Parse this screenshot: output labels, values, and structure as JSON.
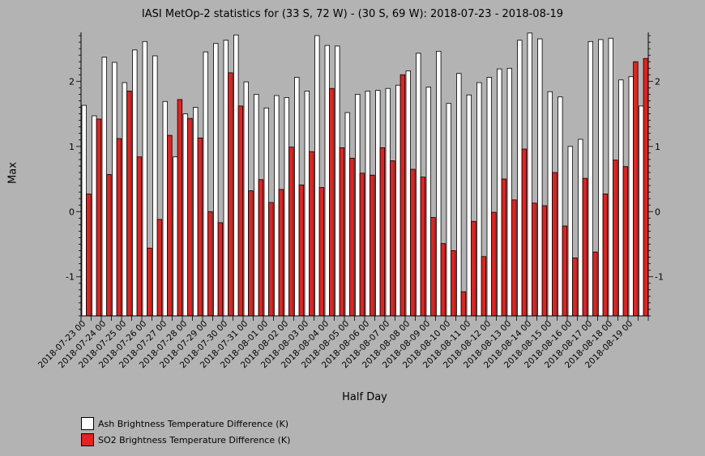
{
  "chart_data": {
    "type": "bar",
    "title": "IASI MetOp-2 statistics for (33 S, 72 W) - (30 S, 69 W): 2018-07-23 - 2018-08-19",
    "xlabel": "Half Day",
    "ylabel": "Max",
    "ylim": [
      -1.6,
      2.75
    ],
    "yticks": [
      -1,
      0,
      1,
      2
    ],
    "grid": false,
    "legend_position": "bottom-left",
    "colors": {
      "ash": "#ffffff",
      "so2": "#e8201e"
    },
    "categories": [
      "2018-07-23 00",
      "2018-07-23 12",
      "2018-07-24 00",
      "2018-07-24 12",
      "2018-07-25 00",
      "2018-07-25 12",
      "2018-07-26 00",
      "2018-07-26 12",
      "2018-07-27 00",
      "2018-07-27 12",
      "2018-07-28 00",
      "2018-07-28 12",
      "2018-07-29 00",
      "2018-07-29 12",
      "2018-07-30 00",
      "2018-07-30 12",
      "2018-07-31 00",
      "2018-07-31 12",
      "2018-08-01 00",
      "2018-08-01 12",
      "2018-08-02 00",
      "2018-08-02 12",
      "2018-08-03 00",
      "2018-08-03 12",
      "2018-08-04 00",
      "2018-08-04 12",
      "2018-08-05 00",
      "2018-08-05 12",
      "2018-08-06 00",
      "2018-08-06 12",
      "2018-08-07 00",
      "2018-08-07 12",
      "2018-08-08 00",
      "2018-08-08 12",
      "2018-08-09 00",
      "2018-08-09 12",
      "2018-08-10 00",
      "2018-08-10 12",
      "2018-08-11 00",
      "2018-08-11 12",
      "2018-08-12 00",
      "2018-08-12 12",
      "2018-08-13 00",
      "2018-08-13 12",
      "2018-08-14 00",
      "2018-08-14 12",
      "2018-08-15 00",
      "2018-08-15 12",
      "2018-08-16 00",
      "2018-08-16 12",
      "2018-08-17 00",
      "2018-08-17 12",
      "2018-08-18 00",
      "2018-08-18 12",
      "2018-08-19 00",
      "2018-08-19 12"
    ],
    "tick_labels": [
      "2018-07-23 00",
      "2018-07-24 00",
      "2018-07-25 00",
      "2018-07-26 00",
      "2018-07-27 00",
      "2018-07-28 00",
      "2018-07-29 00",
      "2018-07-30 00",
      "2018-07-31 00",
      "2018-08-01 00",
      "2018-08-02 00",
      "2018-08-03 00",
      "2018-08-04 00",
      "2018-08-05 00",
      "2018-08-06 00",
      "2018-08-07 00",
      "2018-08-08 00",
      "2018-08-09 00",
      "2018-08-10 00",
      "2018-08-11 00",
      "2018-08-12 00",
      "2018-08-13 00",
      "2018-08-14 00",
      "2018-08-15 00",
      "2018-08-16 00",
      "2018-08-17 00",
      "2018-08-18 00",
      "2018-08-19 00"
    ],
    "series": [
      {
        "name": "Ash Brightness Temperature Difference (K)",
        "values": [
          1.63,
          1.47,
          2.37,
          2.29,
          1.98,
          2.48,
          2.61,
          2.39,
          1.69,
          0.84,
          1.5,
          1.6,
          2.45,
          2.58,
          2.63,
          2.71,
          1.99,
          1.8,
          1.59,
          1.78,
          1.75,
          2.06,
          1.85,
          2.7,
          2.55,
          2.54,
          1.52,
          1.8,
          1.85,
          1.86,
          1.89,
          1.94,
          2.16,
          2.43,
          1.91,
          2.46,
          1.66,
          2.12,
          1.79,
          1.98,
          2.06,
          2.19,
          2.2,
          2.63,
          2.74,
          2.65,
          1.84,
          1.76,
          1.0,
          1.11,
          2.61,
          2.64,
          2.66,
          2.02,
          2.07,
          1.62
        ]
      },
      {
        "name": "SO2 Brightness Temperature Difference (K)",
        "values": [
          0.27,
          1.42,
          0.57,
          1.12,
          1.85,
          0.84,
          -0.56,
          -0.12,
          1.17,
          1.72,
          1.43,
          1.13,
          0.0,
          -0.17,
          2.13,
          1.62,
          0.32,
          0.49,
          0.14,
          0.34,
          0.99,
          0.41,
          0.92,
          0.37,
          1.89,
          0.98,
          0.82,
          0.59,
          0.56,
          0.98,
          0.78,
          2.1,
          0.65,
          0.53,
          -0.09,
          -0.49,
          -0.6,
          -1.23,
          -0.15,
          -0.69,
          -0.01,
          0.5,
          0.18,
          0.96,
          0.13,
          0.09,
          0.6,
          -0.22,
          -0.71,
          0.51,
          -0.62,
          0.27,
          0.79,
          0.69,
          2.3,
          2.35
        ]
      }
    ]
  }
}
